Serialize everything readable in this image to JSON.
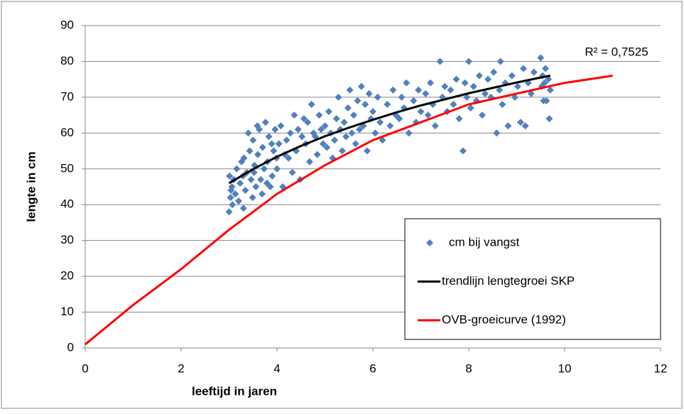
{
  "chart_data": {
    "type": "scatter",
    "xlabel": "leeftijd in jaren",
    "ylabel": "lengte in cm",
    "annotation": "R² = 0,7525",
    "xlim": [
      0,
      12
    ],
    "xticks": [
      0,
      2,
      4,
      6,
      8,
      10,
      12
    ],
    "ylim": [
      0,
      90
    ],
    "yticks": [
      0,
      10,
      20,
      30,
      40,
      50,
      60,
      70,
      80,
      90
    ],
    "grid": true,
    "legend": "lower right",
    "series": [
      {
        "name": "cm  bij vangst",
        "mode": "markers",
        "color": "#4f81bd",
        "x": [
          3.0,
          3.03,
          3.06,
          3.01,
          3.04,
          3.07,
          3.1,
          3.13,
          3.16,
          3.2,
          3.23,
          3.26,
          3.29,
          3.31,
          3.34,
          3.37,
          3.3,
          3.4,
          3.43,
          3.46,
          3.49,
          3.5,
          3.53,
          3.56,
          3.59,
          3.52,
          3.6,
          3.63,
          3.66,
          3.69,
          3.7,
          3.73,
          3.76,
          3.79,
          3.8,
          3.83,
          3.86,
          3.89,
          3.9,
          3.93,
          3.96,
          3.99,
          4.0,
          4.04,
          4.08,
          4.12,
          4.16,
          4.2,
          4.24,
          4.28,
          4.32,
          4.36,
          4.4,
          4.44,
          4.48,
          4.52,
          4.56,
          4.6,
          4.64,
          4.68,
          4.72,
          4.76,
          4.8,
          4.84,
          4.88,
          4.92,
          4.96,
          5.0,
          5.04,
          5.08,
          5.12,
          5.16,
          5.2,
          5.24,
          5.28,
          5.32,
          5.36,
          5.4,
          5.44,
          5.48,
          5.52,
          5.56,
          5.6,
          5.64,
          5.68,
          5.72,
          5.76,
          5.8,
          5.84,
          5.88,
          5.92,
          5.96,
          6.0,
          6.05,
          6.1,
          6.15,
          6.2,
          6.3,
          6.36,
          6.42,
          6.48,
          6.55,
          6.6,
          6.65,
          6.7,
          6.75,
          6.85,
          6.9,
          6.95,
          7.0,
          7.1,
          7.15,
          7.2,
          7.25,
          7.3,
          7.4,
          7.45,
          7.5,
          7.55,
          7.62,
          7.68,
          7.74,
          7.8,
          7.88,
          7.92,
          7.96,
          8.0,
          8.04,
          8.1,
          8.16,
          8.22,
          8.28,
          8.34,
          8.4,
          8.46,
          8.52,
          8.58,
          8.64,
          8.66,
          8.7,
          8.76,
          8.82,
          8.9,
          8.96,
          9.02,
          9.08,
          9.14,
          9.18,
          9.24,
          9.3,
          9.36,
          9.5,
          9.52,
          9.54,
          9.56,
          9.58,
          9.6,
          9.62,
          9.66,
          9.7,
          9.68
        ],
        "values": [
          38,
          42,
          45,
          48,
          44,
          40,
          47,
          43,
          50,
          41,
          46,
          52,
          48,
          53,
          44,
          49,
          39,
          60,
          55,
          47,
          42,
          58,
          51,
          45,
          62,
          49,
          54,
          61,
          47,
          43,
          56,
          50,
          63,
          46,
          52,
          59,
          45,
          57,
          48,
          55,
          61,
          53,
          50,
          57,
          62,
          45,
          54,
          58,
          53,
          60,
          49,
          65,
          55,
          61,
          47,
          59,
          64,
          57,
          63,
          52,
          68,
          60,
          59,
          54,
          65,
          61,
          57,
          62,
          56,
          66,
          60,
          53,
          58,
          64,
          70,
          61,
          55,
          63,
          59,
          67,
          72,
          60,
          65,
          57,
          69,
          61,
          73,
          62,
          68,
          55,
          71,
          64,
          66,
          60,
          70,
          63,
          58,
          68,
          62,
          72,
          65,
          64,
          70,
          67,
          74,
          60,
          69,
          63,
          72,
          66,
          71,
          65,
          74,
          68,
          62,
          80,
          70,
          73,
          66,
          72,
          68,
          75,
          64,
          55,
          74,
          70,
          80,
          67,
          73,
          69,
          76,
          65,
          71,
          75,
          70,
          77,
          60,
          72,
          80,
          68,
          74,
          62,
          76,
          70,
          73,
          63,
          78,
          62,
          74,
          71,
          77,
          81,
          73,
          76,
          69,
          74,
          78,
          69,
          75,
          72,
          64
        ]
      },
      {
        "name": "trendlijn lengtegroei SKP",
        "mode": "line",
        "color": "#000000",
        "x": [
          3,
          3.5,
          4,
          4.5,
          5,
          5.5,
          6,
          6.5,
          7,
          7.5,
          8,
          8.5,
          9,
          9.5,
          9.7
        ],
        "values": [
          46.0,
          49.9,
          53.4,
          56.4,
          59.1,
          61.5,
          63.7,
          65.8,
          67.7,
          69.4,
          71.1,
          72.6,
          74.1,
          75.5,
          76.0
        ]
      },
      {
        "name": "OVB-groeicurve (1992)",
        "mode": "line",
        "color": "#ff0000",
        "x": [
          0,
          1,
          2,
          3,
          4,
          5,
          6,
          7,
          8,
          9,
          10,
          11
        ],
        "values": [
          1,
          12,
          22,
          33,
          43,
          51,
          58,
          63,
          68,
          71,
          74,
          76
        ]
      }
    ]
  }
}
